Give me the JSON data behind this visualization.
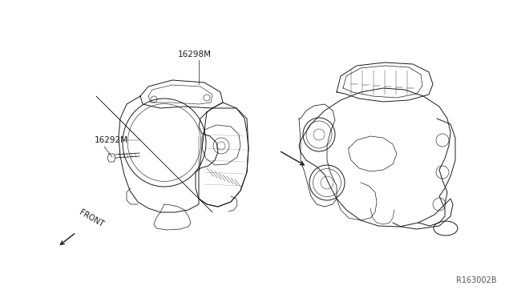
{
  "bg_color": "#ffffff",
  "line_color": "#1a1a1a",
  "part_numbers": [
    "16298M",
    "16292M"
  ],
  "ref_code": "R163002B",
  "front_text": "FRONT",
  "lw": 0.7
}
